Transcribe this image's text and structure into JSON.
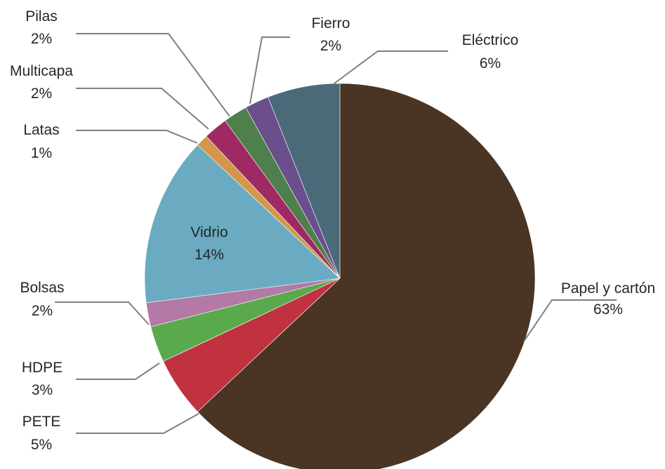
{
  "chart_data": {
    "type": "pie",
    "categories": [
      "Papel y cartón",
      "PETE",
      "HDPE",
      "Bolsas",
      "Vidrio",
      "Latas",
      "Multicapa",
      "Pilas",
      "Fierro",
      "Eléctrico"
    ],
    "values": [
      63,
      5,
      3,
      2,
      14,
      1,
      2,
      2,
      2,
      6
    ],
    "value_labels": [
      "63%",
      "5%",
      "3%",
      "2%",
      "14%",
      "1%",
      "2%",
      "2%",
      "2%",
      "6%"
    ],
    "colors": [
      "#4a3524",
      "#c0323f",
      "#5aaa4d",
      "#b27aa5",
      "#6aabc2",
      "#d3964a",
      "#9f2a63",
      "#4e7f4c",
      "#6b4e8c",
      "#4a6a7a"
    ],
    "start": "12 o'clock, clockwise",
    "legend": "none (labels with leader lines)"
  }
}
